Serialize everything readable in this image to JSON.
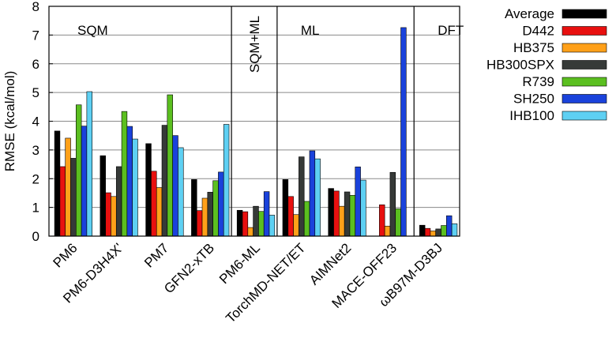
{
  "chart_data": {
    "type": "bar",
    "title": "",
    "xlabel": "",
    "ylabel": "RMSE (kcal/mol)",
    "ylim": [
      0,
      8
    ],
    "yticks": [
      0,
      1,
      2,
      3,
      4,
      5,
      6,
      7,
      8
    ],
    "grid": true,
    "legend_position": "right",
    "categories": [
      "PM6",
      "PM6-D3H4X'",
      "PM7",
      "GFN2-xTB",
      "PM6-ML",
      "TorchMD-NET/ET",
      "AIMNet2",
      "MACE-OFF23",
      "ωB97M-D3BJ"
    ],
    "groups": [
      {
        "label": "SQM",
        "span": [
          0,
          3
        ]
      },
      {
        "label": "SQM+ML",
        "span": [
          4,
          4
        ]
      },
      {
        "label": "ML",
        "span": [
          5,
          7
        ]
      },
      {
        "label": "DFT",
        "span": [
          8,
          8
        ]
      }
    ],
    "series": [
      {
        "name": "Average",
        "color": "#000000",
        "values": [
          3.66,
          2.8,
          3.22,
          1.97,
          0.9,
          1.97,
          1.66,
          0.0,
          0.38
        ]
      },
      {
        "name": "D442",
        "color": "#e8100f",
        "values": [
          2.42,
          1.51,
          2.26,
          0.89,
          0.85,
          1.38,
          1.57,
          1.09,
          0.27
        ]
      },
      {
        "name": "HB375",
        "color": "#ffa019",
        "values": [
          3.41,
          1.38,
          1.69,
          1.32,
          0.3,
          0.75,
          1.04,
          0.35,
          0.18
        ]
      },
      {
        "name": "HB300SPX",
        "color": "#363a38",
        "values": [
          2.71,
          2.42,
          3.86,
          1.53,
          1.04,
          2.76,
          1.54,
          2.22,
          0.25
        ]
      },
      {
        "name": "R739",
        "color": "#5bbf20",
        "values": [
          4.57,
          4.34,
          4.92,
          1.93,
          0.86,
          1.21,
          1.42,
          0.95,
          0.37
        ]
      },
      {
        "name": "SH250",
        "color": "#1a42db",
        "values": [
          3.83,
          3.82,
          3.5,
          2.23,
          1.55,
          2.97,
          2.41,
          7.26,
          0.71
        ]
      },
      {
        "name": "IHB100",
        "color": "#5ed0f3",
        "values": [
          5.03,
          3.38,
          3.08,
          3.89,
          0.73,
          2.69,
          1.95,
          0.0,
          0.43
        ]
      }
    ]
  }
}
